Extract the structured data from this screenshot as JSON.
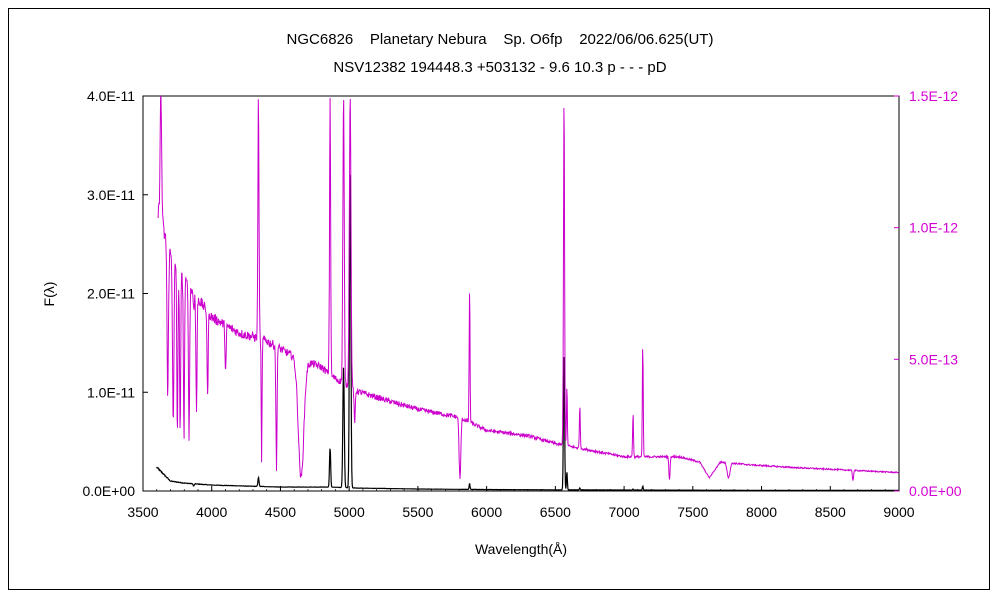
{
  "chart_data": {
    "type": "line",
    "title": "NGC6826    Planetary Nebura    Sp. O6fp    2022/06/06.625(UT)",
    "subtitle": "NSV12382 194448.3 +503132 - 9.6 10.3 p - - - pD",
    "xlabel": "Wavelength(Å)",
    "ylabel": "F(λ)",
    "xlim": [
      3500,
      9000
    ],
    "ylim": [
      0,
      4e-11
    ],
    "y2lim": [
      0,
      1.5e-12
    ],
    "x_ticks": [
      "3500",
      "4000",
      "4500",
      "5000",
      "5500",
      "6000",
      "6500",
      "7000",
      "7500",
      "8000",
      "8500",
      "9000"
    ],
    "y_ticks": [
      "0.0E+00",
      "1.0E-11",
      "2.0E-11",
      "3.0E-11",
      "4.0E-11"
    ],
    "y2_ticks": [
      "0.0E+00",
      "5.0E-13",
      "1.0E-12",
      "1.5E-12"
    ],
    "grid": false,
    "colors": {
      "left_axis": "#000000",
      "right_axis": "#d400d4",
      "series1": "#000000",
      "series2": "#cc00cc"
    },
    "series": [
      {
        "axis": "left",
        "color": "#000000",
        "continuum": [
          [
            3600,
            2.4e-12
          ],
          [
            3700,
            1e-12
          ],
          [
            3800,
            8e-13
          ],
          [
            4000,
            6e-13
          ],
          [
            4500,
            4e-13
          ],
          [
            4850,
            4e-13
          ],
          [
            5050,
            3e-13
          ],
          [
            5500,
            2e-13
          ],
          [
            6000,
            1.5e-13
          ],
          [
            6500,
            1.2e-13
          ],
          [
            7000,
            1e-13
          ],
          [
            8000,
            7e-14
          ],
          [
            9000,
            6e-14
          ]
        ],
        "lines": [
          {
            "x": 3869,
            "peak": 5e-13,
            "w": 4
          },
          {
            "x": 4340,
            "peak": 1.4e-12,
            "w": 4
          },
          {
            "x": 4861,
            "peak": 4.4e-12,
            "w": 4
          },
          {
            "x": 4959,
            "peak": 1.25e-11,
            "w": 5
          },
          {
            "x": 5007,
            "peak": 3.2e-11,
            "w": 5
          },
          {
            "x": 5876,
            "peak": 8e-13,
            "w": 3
          },
          {
            "x": 6563,
            "peak": 1.4e-11,
            "w": 4
          },
          {
            "x": 6584,
            "peak": 2e-12,
            "w": 3
          },
          {
            "x": 6678,
            "peak": 3e-13,
            "w": 3
          },
          {
            "x": 7065,
            "peak": 2e-13,
            "w": 3
          },
          {
            "x": 7136,
            "peak": 5e-13,
            "w": 3
          }
        ]
      },
      {
        "axis": "right",
        "color": "#cc00cc",
        "continuum": [
          [
            3610,
            1.05e-12
          ],
          [
            3700,
            9e-13
          ],
          [
            3800,
            8e-13
          ],
          [
            3900,
            7.3e-13
          ],
          [
            4000,
            6.6e-13
          ],
          [
            4200,
            6e-13
          ],
          [
            4400,
            5.7e-13
          ],
          [
            4600,
            5.1e-13
          ],
          [
            4800,
            4.7e-13
          ],
          [
            4860,
            4.4e-13
          ],
          [
            5050,
            3.8e-13
          ],
          [
            5300,
            3.4e-13
          ],
          [
            5500,
            3.1e-13
          ],
          [
            5800,
            2.8e-13
          ],
          [
            6000,
            2.3e-13
          ],
          [
            6300,
            2.1e-13
          ],
          [
            6500,
            1.8e-13
          ],
          [
            6800,
            1.5e-13
          ],
          [
            7000,
            1.3e-13
          ],
          [
            7200,
            1.3e-13
          ],
          [
            7400,
            1.3e-13
          ],
          [
            7550,
            1.1e-13
          ],
          [
            7620,
            5e-14
          ],
          [
            7700,
            1.1e-13
          ],
          [
            7900,
            1e-13
          ],
          [
            8200,
            9e-14
          ],
          [
            8600,
            8e-14
          ],
          [
            9000,
            7e-14
          ]
        ],
        "lines": [
          {
            "x": 3630,
            "peak": 1.5e-12,
            "w": 6
          },
          {
            "x": 3680,
            "peak": 3.5e-13,
            "w": 5
          },
          {
            "x": 3720,
            "peak": 2.5e-13,
            "w": 5
          },
          {
            "x": 3750,
            "peak": 2e-13,
            "w": 4
          },
          {
            "x": 3770,
            "peak": 2e-13,
            "w": 4
          },
          {
            "x": 3798,
            "peak": 2e-13,
            "w": 4
          },
          {
            "x": 3835,
            "peak": 2e-13,
            "w": 4
          },
          {
            "x": 3869,
            "peak": 7e-13,
            "w": 4
          },
          {
            "x": 3889,
            "peak": 3e-13,
            "w": 4
          },
          {
            "x": 3970,
            "peak": 3.5e-13,
            "w": 4
          },
          {
            "x": 4101,
            "peak": 4.5e-13,
            "w": 4
          },
          {
            "x": 4340,
            "peak": 1.5e-12,
            "w": 4
          },
          {
            "x": 4363,
            "peak": 1e-13,
            "w": 3
          },
          {
            "x": 4471,
            "peak": 8e-14,
            "w": 4
          },
          {
            "x": 4650,
            "peak": 5e-14,
            "w": 20
          },
          {
            "x": 4861,
            "peak": 1.5e-12,
            "w": 4
          },
          {
            "x": 4959,
            "peak": 1.5e-12,
            "w": 5
          },
          {
            "x": 5007,
            "peak": 1.5e-12,
            "w": 6
          },
          {
            "x": 5040,
            "peak": 2.5e-13,
            "w": 4
          },
          {
            "x": 5806,
            "peak": 4e-14,
            "w": 6
          },
          {
            "x": 5876,
            "peak": 7.7e-13,
            "w": 3
          },
          {
            "x": 6563,
            "peak": 1.5e-12,
            "w": 4
          },
          {
            "x": 6584,
            "peak": 4e-13,
            "w": 3
          },
          {
            "x": 6678,
            "peak": 3.3e-13,
            "w": 3
          },
          {
            "x": 7065,
            "peak": 3e-13,
            "w": 3
          },
          {
            "x": 7136,
            "peak": 5.6e-13,
            "w": 3
          },
          {
            "x": 7330,
            "peak": 4e-14,
            "w": 4
          },
          {
            "x": 7760,
            "peak": 5e-14,
            "w": 10
          },
          {
            "x": 8665,
            "peak": 4e-14,
            "w": 4
          }
        ]
      }
    ]
  }
}
